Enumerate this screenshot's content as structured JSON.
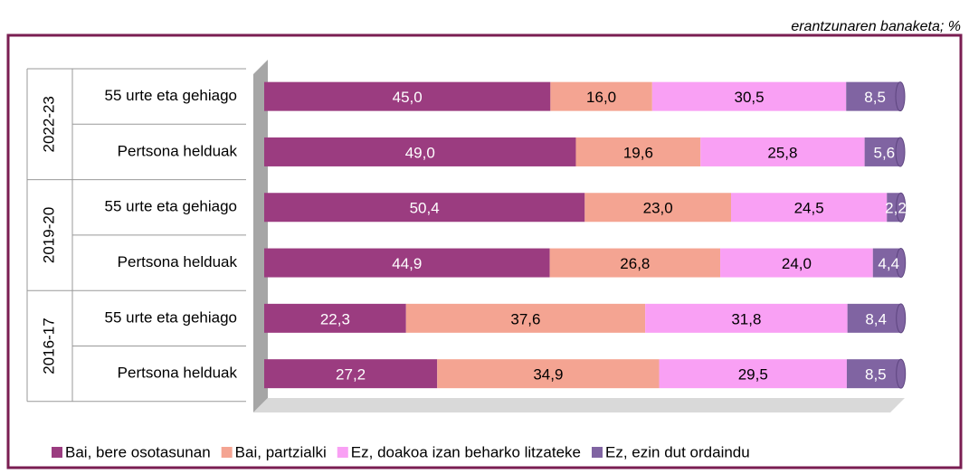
{
  "chart_data": {
    "type": "stacked-barh",
    "subtitle": "erantzunaren banaketa; %",
    "groups": [
      "2022-23",
      "2019-20",
      "2016-17"
    ],
    "categories": [
      "55 urte eta gehiago",
      "Pertsona helduak",
      "55 urte eta gehiago",
      "Pertsona helduak",
      "55 urte eta gehiago",
      "Pertsona helduak"
    ],
    "xlim": [
      0,
      100
    ],
    "legend": "bottom",
    "series": [
      {
        "name": "Bai, bere osotasunan",
        "color": "#9b3c80",
        "values": [
          45.0,
          49.0,
          50.4,
          44.9,
          22.3,
          27.2
        ],
        "value_labels": [
          "45,0",
          "49,0",
          "50,4",
          "44,9",
          "22,3",
          "27,2"
        ]
      },
      {
        "name": "Bai, partzialki",
        "color": "#f4a492",
        "values": [
          16.0,
          19.6,
          23.0,
          26.8,
          37.6,
          34.9
        ],
        "value_labels": [
          "16,0",
          "19,6",
          "23,0",
          "26,8",
          "37,6",
          "34,9"
        ]
      },
      {
        "name": "Ez, doakoa izan beharko litzateke",
        "color": "#f9a0f4",
        "values": [
          30.5,
          25.8,
          24.5,
          24.0,
          31.8,
          29.5
        ],
        "value_labels": [
          "30,5",
          "25,8",
          "24,5",
          "24,0",
          "31,8",
          "29,5"
        ]
      },
      {
        "name": "Ez, ezin dut ordaindu",
        "color": "#8064a2",
        "values": [
          8.5,
          5.6,
          2.2,
          4.4,
          8.4,
          8.5
        ],
        "value_labels": [
          "8,5",
          "5,6",
          "2,2",
          "4,4",
          "8,4",
          "8,5"
        ]
      }
    ]
  }
}
